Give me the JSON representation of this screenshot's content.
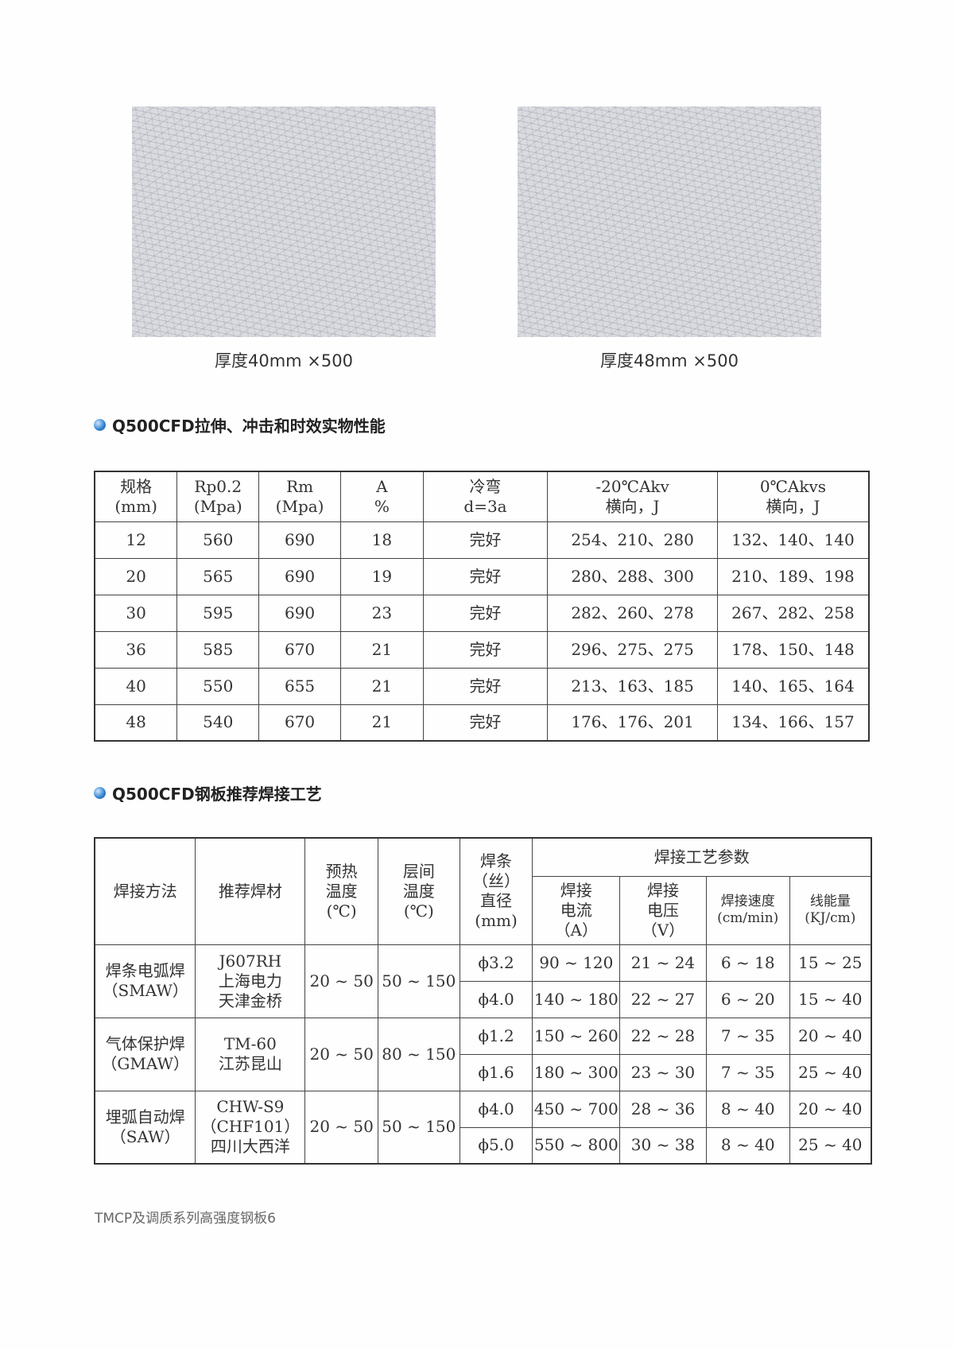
{
  "captions": [
    "厚度40mm    ×500",
    "厚度48mm    ×500"
  ],
  "section1": {
    "title": "Q500CFD拉伸、冲击和时效实物性能",
    "headers": [
      [
        "规格",
        "(mm)"
      ],
      [
        "Rp0.2",
        "(Mpa)"
      ],
      [
        "Rm",
        "(Mpa)"
      ],
      [
        "A",
        "%"
      ],
      [
        "冷弯",
        "d=3a"
      ],
      [
        "-20℃Akv",
        "横向，J"
      ],
      [
        "0℃Akvs",
        "横向，J"
      ]
    ],
    "rows": [
      [
        "12",
        "560",
        "690",
        "18",
        "完好",
        "254、210、280",
        "132、140、140"
      ],
      [
        "20",
        "565",
        "690",
        "19",
        "完好",
        "280、288、300",
        "210、189、198"
      ],
      [
        "30",
        "595",
        "690",
        "23",
        "完好",
        "282、260、278",
        "267、282、258"
      ],
      [
        "36",
        "585",
        "670",
        "21",
        "完好",
        "296、275、275",
        "178、150、148"
      ],
      [
        "40",
        "550",
        "655",
        "21",
        "完好",
        "213、163、185",
        "140、165、164"
      ],
      [
        "48",
        "540",
        "670",
        "21",
        "完好",
        "176、176、201",
        "134、166、157"
      ]
    ]
  },
  "section2": {
    "title": "Q500CFD钢板推荐焊接工艺",
    "headers": {
      "method": "焊接方法",
      "material": "推荐焊材",
      "preheat": [
        "预热",
        "温度",
        "(℃)"
      ],
      "interpass": [
        "层间",
        "温度",
        "(℃)"
      ],
      "diameter": [
        "焊条",
        "（丝）",
        "直径",
        "(mm)"
      ],
      "params": "焊接工艺参数",
      "sub": [
        [
          "焊接",
          "电流",
          "（A）"
        ],
        [
          "焊接",
          "电压",
          "（V）"
        ],
        [
          "焊接速度",
          "(cm/min)"
        ],
        [
          "线能量",
          "(KJ/cm)"
        ]
      ]
    },
    "groups": [
      {
        "method": [
          "焊条电弧焊",
          "（SMAW）"
        ],
        "material": [
          "J607RH",
          "上海电力",
          "天津金桥"
        ],
        "preheat": "20 ~ 50",
        "interpass": "50 ~ 150",
        "rows": [
          [
            "ϕ3.2",
            "90 ~ 120",
            "21 ~ 24",
            "6 ~ 18",
            "15 ~ 25"
          ],
          [
            "ϕ4.0",
            "140 ~ 180",
            "22 ~ 27",
            "6 ~ 20",
            "15 ~ 40"
          ]
        ]
      },
      {
        "method": [
          "气体保护焊",
          "（GMAW）"
        ],
        "material": [
          "TM-60",
          "江苏昆山"
        ],
        "preheat": "20 ~ 50",
        "interpass": "80 ~ 150",
        "rows": [
          [
            "ϕ1.2",
            "150 ~ 260",
            "22 ~ 28",
            "7 ~ 35",
            "20 ~ 40"
          ],
          [
            "ϕ1.6",
            "180 ~ 300",
            "23 ~ 30",
            "7 ~ 35",
            "25 ~ 40"
          ]
        ]
      },
      {
        "method": [
          "埋弧自动焊",
          "（SAW）"
        ],
        "material": [
          "CHW-S9",
          "（CHF101）",
          "四川大西洋"
        ],
        "preheat": "20 ~ 50",
        "interpass": "50 ~ 150",
        "rows": [
          [
            "ϕ4.0",
            "450 ~ 700",
            "28 ~ 36",
            "8 ~ 40",
            "20 ~ 40"
          ],
          [
            "ϕ5.0",
            "550 ~ 800",
            "30 ~ 38",
            "8 ~ 40",
            "25 ~ 40"
          ]
        ]
      }
    ]
  },
  "footer": "TMCP及调质系列高强度钢板6"
}
